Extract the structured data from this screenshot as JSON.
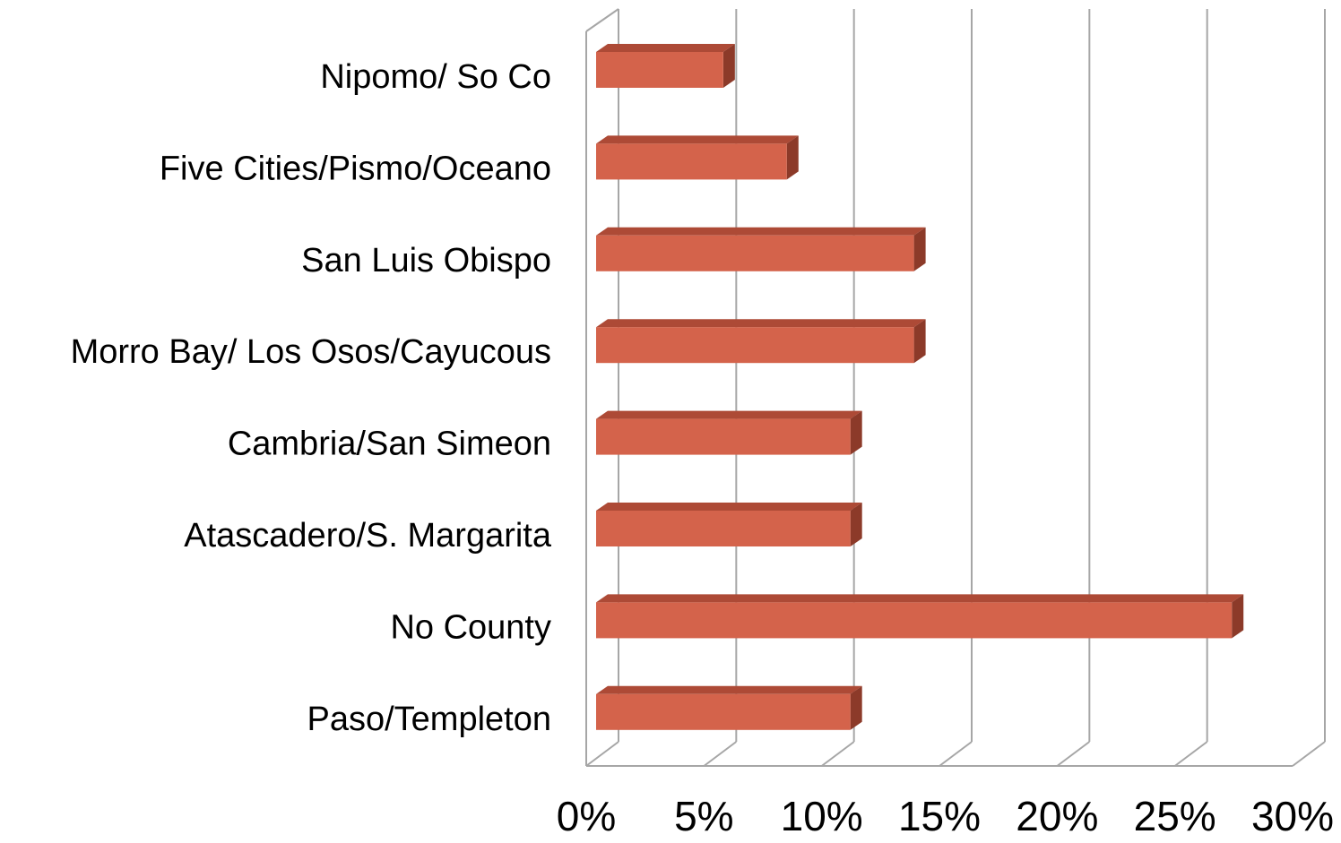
{
  "chart_data": {
    "type": "bar3d_horizontal",
    "categories": [
      "Nipomo/ So Co",
      "Five Cities/Pismo/Oceano",
      "San Luis Obispo",
      "Morro Bay/ Los Osos/Cayucous",
      "Cambria/San Simeon",
      "Atascadero/S. Margarita",
      "No County",
      "Paso/Templeton"
    ],
    "values": [
      5.4,
      8.1,
      13.5,
      13.5,
      10.8,
      10.8,
      27.0,
      10.8
    ],
    "color": "#d4634b",
    "xlim": [
      0,
      30
    ],
    "xticks": [
      {
        "value": 0,
        "label": "0%"
      },
      {
        "value": 5,
        "label": "5%"
      },
      {
        "value": 10,
        "label": "10%"
      },
      {
        "value": 15,
        "label": "15%"
      },
      {
        "value": 20,
        "label": "20%"
      },
      {
        "value": 25,
        "label": "25%"
      },
      {
        "value": 30,
        "label": "30%"
      }
    ],
    "grid": true
  }
}
